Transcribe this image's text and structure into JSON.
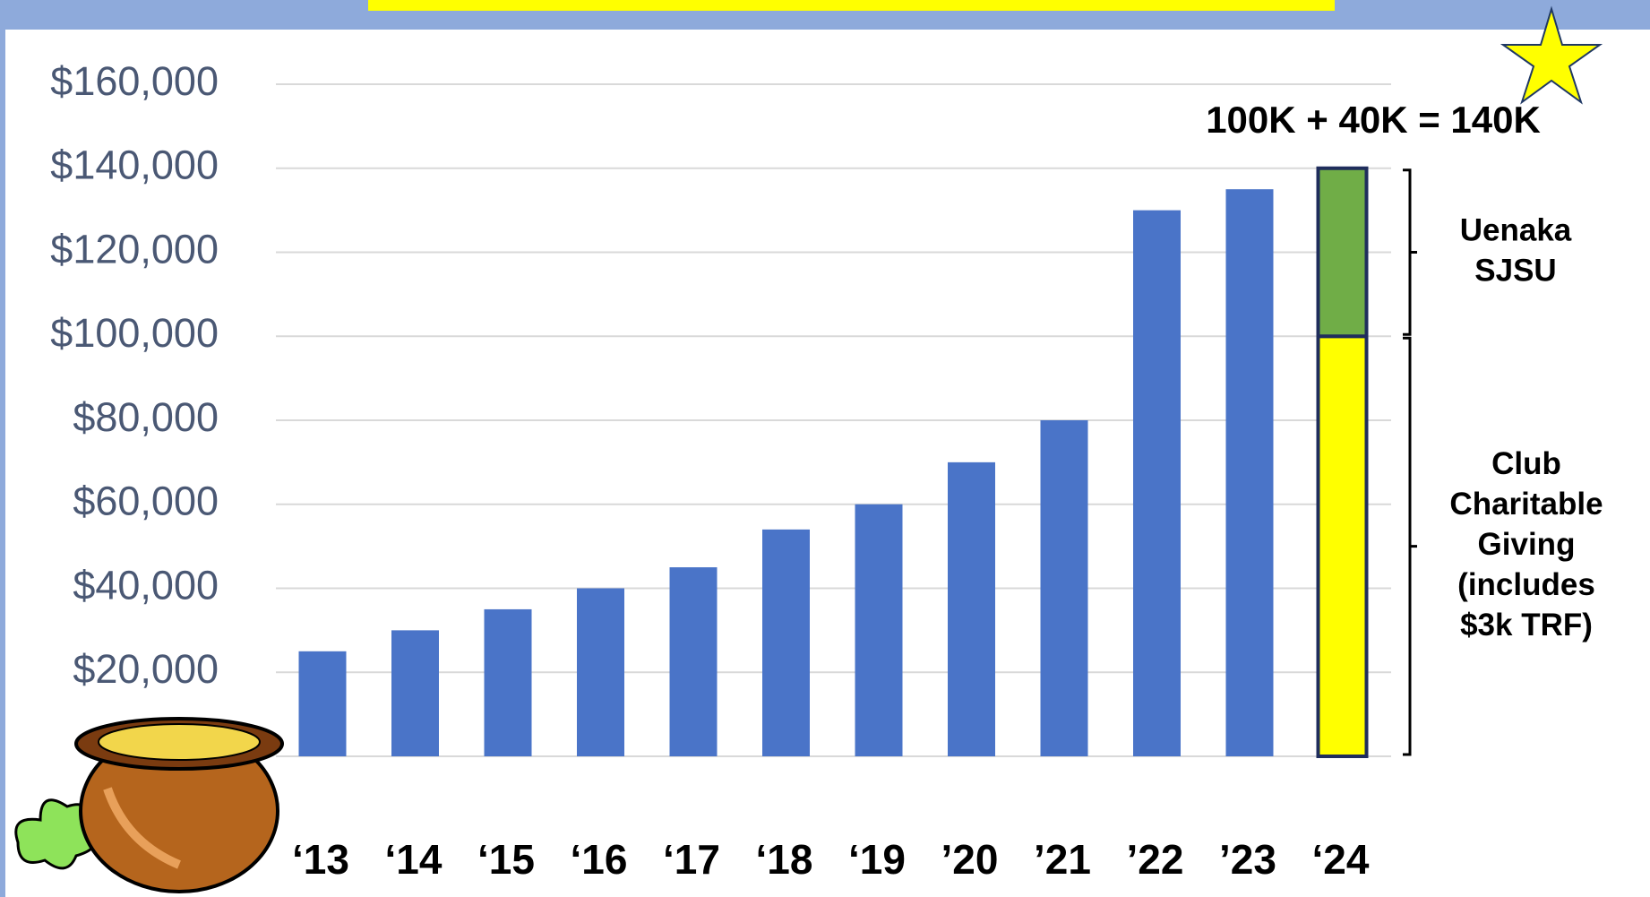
{
  "chart_data": {
    "type": "bar",
    "categories": [
      "‘13",
      "‘14",
      "‘15",
      "‘16",
      "‘17",
      "‘18",
      "‘19",
      "’20",
      "’21",
      "’22",
      "’23",
      "‘24"
    ],
    "series": [
      {
        "color": "#4a74c8",
        "values": [
          25000,
          30000,
          35000,
          40000,
          45000,
          54000,
          60000,
          70000,
          80000,
          130000,
          135000,
          null
        ]
      },
      {
        "color": "#ffff00",
        "values": [
          null,
          null,
          null,
          null,
          null,
          null,
          null,
          null,
          null,
          null,
          null,
          100000
        ]
      },
      {
        "color": "#70ad47",
        "values": [
          null,
          null,
          null,
          null,
          null,
          null,
          null,
          null,
          null,
          null,
          null,
          40000
        ]
      }
    ],
    "stacked": true,
    "ylim": [
      0,
      160000
    ],
    "yticks": [
      {
        "value": 20000,
        "label": "$20,000"
      },
      {
        "value": 40000,
        "label": "$40,000"
      },
      {
        "value": 60000,
        "label": "$60,000"
      },
      {
        "value": 80000,
        "label": "$80,000"
      },
      {
        "value": 100000,
        "label": "$100,000"
      },
      {
        "value": 120000,
        "label": "$120,000"
      },
      {
        "value": 140000,
        "label": "$140,000"
      },
      {
        "value": 160000,
        "label": "$160,000"
      }
    ],
    "grid": true,
    "annotation": "100K + 40K = 140K",
    "bracket_labels": [
      [
        "Uenaka",
        "SJSU"
      ],
      [
        "Club",
        "Charitable",
        "Giving",
        "(includes",
        "$3k TRF)"
      ]
    ]
  }
}
